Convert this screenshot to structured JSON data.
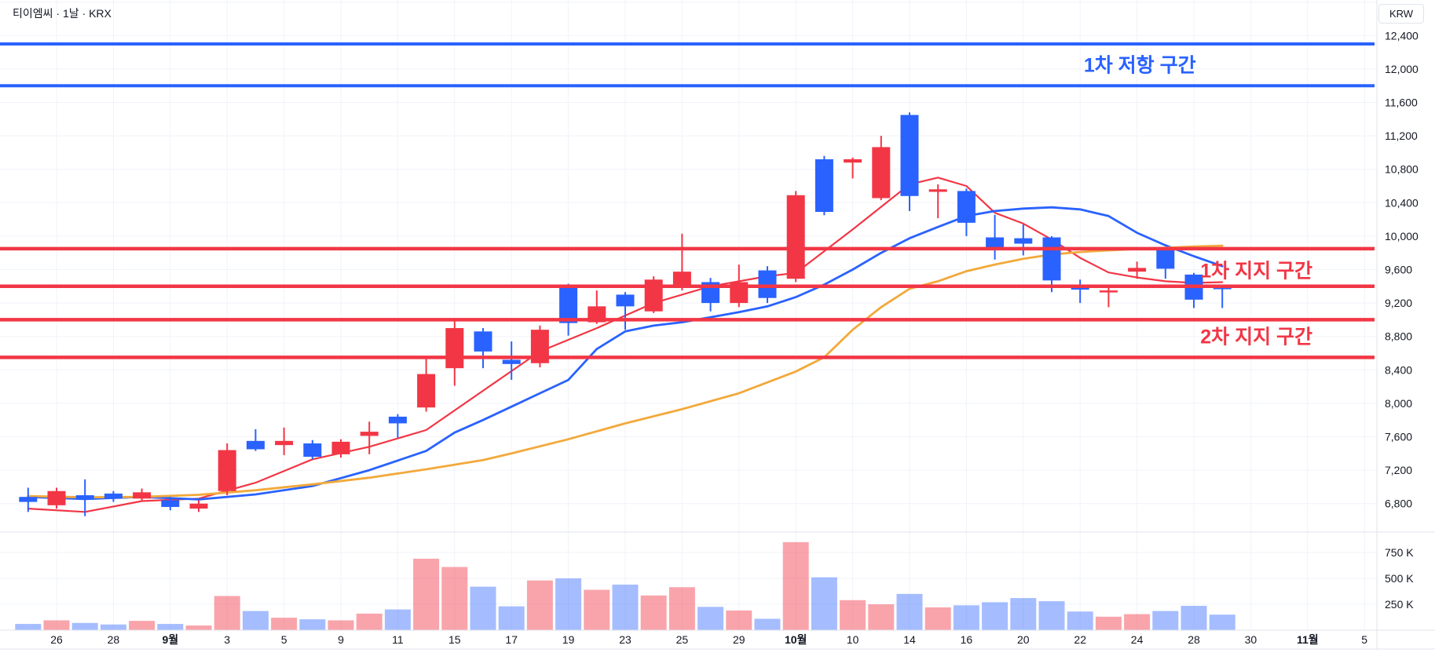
{
  "header": {
    "title": "티이엠씨 · 1날 · KRX"
  },
  "axis": {
    "currency_label": "KRW",
    "price_ticks": [
      {
        "label": "12,400",
        "price": 12400
      },
      {
        "label": "12,000",
        "price": 12000
      },
      {
        "label": "11,600",
        "price": 11600
      },
      {
        "label": "11,200",
        "price": 11200
      },
      {
        "label": "10,800",
        "price": 10800
      },
      {
        "label": "10,400",
        "price": 10400
      },
      {
        "label": "10,000",
        "price": 10000
      },
      {
        "label": "9,600",
        "price": 9600
      },
      {
        "label": "9,200",
        "price": 9200
      },
      {
        "label": "8,800",
        "price": 8800
      },
      {
        "label": "8,400",
        "price": 8400
      },
      {
        "label": "8,000",
        "price": 8000
      },
      {
        "label": "7,600",
        "price": 7600
      },
      {
        "label": "7,200",
        "price": 7200
      },
      {
        "label": "6,800",
        "price": 6800
      }
    ],
    "volume_ticks": [
      {
        "label": "750 K",
        "value_k": 750
      },
      {
        "label": "500 K",
        "value_k": 500
      },
      {
        "label": "250 K",
        "value_k": 250
      }
    ],
    "date_ticks": [
      {
        "label": "26",
        "index": 1,
        "month": false
      },
      {
        "label": "28",
        "index": 3,
        "month": false
      },
      {
        "label": "9월",
        "index": 5,
        "month": true
      },
      {
        "label": "3",
        "index": 7,
        "month": false
      },
      {
        "label": "5",
        "index": 9,
        "month": false
      },
      {
        "label": "9",
        "index": 11,
        "month": false
      },
      {
        "label": "11",
        "index": 13,
        "month": false
      },
      {
        "label": "15",
        "index": 15,
        "month": false
      },
      {
        "label": "17",
        "index": 17,
        "month": false
      },
      {
        "label": "19",
        "index": 19,
        "month": false
      },
      {
        "label": "23",
        "index": 21,
        "month": false
      },
      {
        "label": "25",
        "index": 23,
        "month": false
      },
      {
        "label": "29",
        "index": 25,
        "month": false
      },
      {
        "label": "10월",
        "index": 27,
        "month": true
      },
      {
        "label": "10",
        "index": 29,
        "month": false
      },
      {
        "label": "14",
        "index": 31,
        "month": false
      },
      {
        "label": "16",
        "index": 33,
        "month": false
      },
      {
        "label": "20",
        "index": 35,
        "month": false
      },
      {
        "label": "22",
        "index": 37,
        "month": false
      },
      {
        "label": "24",
        "index": 39,
        "month": false
      },
      {
        "label": "28",
        "index": 41,
        "month": false
      },
      {
        "label": "30",
        "index": 43,
        "month": false
      },
      {
        "label": "11월",
        "index": 45,
        "month": true
      },
      {
        "label": "5",
        "index": 47,
        "month": false
      }
    ]
  },
  "levels": {
    "resistance": {
      "color": "#2962ff",
      "width": 4,
      "prices": [
        12300,
        11800
      ]
    },
    "support": {
      "color": "#f23645",
      "width": 4.5,
      "prices": [
        9850,
        9400,
        9000,
        8550
      ]
    }
  },
  "annotations": [
    {
      "text": "1차 저항 구간",
      "color": "#2962ff",
      "index": 39.1,
      "price": 12050
    },
    {
      "text": "1차 지지 구간",
      "color": "#f23645",
      "index": 43.2,
      "price": 9590
    },
    {
      "text": "2차 지지 구간",
      "color": "#f23645",
      "index": 43.2,
      "price": 8800
    }
  ],
  "chart_data": {
    "type": "candlestick",
    "ylabel": "KRW",
    "price_range": [
      6800,
      12400
    ],
    "up_color": "#f23645",
    "down_color": "#2962ff",
    "volume_up_color": "rgba(242,54,69,0.45)",
    "volume_down_color": "rgba(41,98,255,0.42)",
    "candles_ohlcv_k": [
      [
        6880,
        6990,
        6700,
        6820,
        60
      ],
      [
        6780,
        6990,
        6740,
        6950,
        95
      ],
      [
        6900,
        7090,
        6650,
        6850,
        70
      ],
      [
        6920,
        6950,
        6820,
        6860,
        55
      ],
      [
        6860,
        6980,
        6830,
        6935,
        90
      ],
      [
        6840,
        6880,
        6720,
        6760,
        60
      ],
      [
        6740,
        6840,
        6700,
        6800,
        45
      ],
      [
        6950,
        7520,
        6900,
        7440,
        330
      ],
      [
        7550,
        7690,
        7430,
        7450,
        185
      ],
      [
        7500,
        7710,
        7380,
        7550,
        120
      ],
      [
        7520,
        7560,
        7330,
        7360,
        105
      ],
      [
        7390,
        7570,
        7350,
        7540,
        95
      ],
      [
        7610,
        7780,
        7390,
        7660,
        160
      ],
      [
        7840,
        7870,
        7590,
        7760,
        200
      ],
      [
        7950,
        8560,
        7900,
        8350,
        690
      ],
      [
        8420,
        8980,
        8210,
        8900,
        610
      ],
      [
        8860,
        8900,
        8420,
        8620,
        420
      ],
      [
        8520,
        8740,
        8280,
        8470,
        230
      ],
      [
        8480,
        8930,
        8430,
        8880,
        480
      ],
      [
        9410,
        9430,
        8810,
        8960,
        500
      ],
      [
        8970,
        9350,
        8950,
        9160,
        390
      ],
      [
        9300,
        9330,
        8880,
        9160,
        440
      ],
      [
        9100,
        9520,
        9080,
        9480,
        335
      ],
      [
        9380,
        10030,
        9350,
        9575,
        415
      ],
      [
        9450,
        9500,
        9100,
        9200,
        225
      ],
      [
        9200,
        9660,
        9150,
        9450,
        190
      ],
      [
        9590,
        9640,
        9200,
        9260,
        110
      ],
      [
        9490,
        10540,
        9450,
        10490,
        850
      ],
      [
        10920,
        10960,
        10250,
        10290,
        510
      ],
      [
        10880,
        10940,
        10690,
        10920,
        290
      ],
      [
        10455,
        11200,
        10430,
        11065,
        250
      ],
      [
        11450,
        11480,
        10300,
        10480,
        350
      ],
      [
        10530,
        10620,
        10215,
        10560,
        220
      ],
      [
        10540,
        10570,
        10000,
        10160,
        240
      ],
      [
        9985,
        10255,
        9720,
        9840,
        270
      ],
      [
        9975,
        10140,
        9770,
        9910,
        310
      ],
      [
        9985,
        10000,
        9330,
        9470,
        280
      ],
      [
        9400,
        9480,
        9200,
        9360,
        180
      ],
      [
        9330,
        9400,
        9150,
        9350,
        130
      ],
      [
        9575,
        9695,
        9490,
        9620,
        155
      ],
      [
        9855,
        9860,
        9490,
        9610,
        185
      ],
      [
        9540,
        9560,
        9140,
        9240,
        235
      ],
      [
        9390,
        9420,
        9140,
        9365,
        150
      ]
    ],
    "moving_averages": [
      {
        "name": "ma-fast",
        "color": "#f23645",
        "stroke": 2.2,
        "points": [
          [
            0,
            6740
          ],
          [
            2,
            6700
          ],
          [
            4,
            6830
          ],
          [
            6,
            6860
          ],
          [
            8,
            7050
          ],
          [
            10,
            7330
          ],
          [
            12,
            7480
          ],
          [
            14,
            7680
          ],
          [
            16,
            8150
          ],
          [
            18,
            8620
          ],
          [
            20,
            8900
          ],
          [
            22,
            9200
          ],
          [
            24,
            9400
          ],
          [
            26,
            9520
          ],
          [
            27,
            9560
          ],
          [
            28,
            9820
          ],
          [
            29,
            10080
          ],
          [
            30,
            10350
          ],
          [
            31,
            10620
          ],
          [
            32,
            10700
          ],
          [
            33,
            10600
          ],
          [
            34,
            10280
          ],
          [
            35,
            10150
          ],
          [
            36,
            9960
          ],
          [
            37,
            9740
          ],
          [
            38,
            9565
          ],
          [
            39,
            9505
          ],
          [
            40,
            9460
          ],
          [
            41,
            9440
          ],
          [
            42,
            9450
          ]
        ]
      },
      {
        "name": "ma-mid",
        "color": "#2962ff",
        "stroke": 2.8,
        "points": [
          [
            0,
            6880
          ],
          [
            2,
            6855
          ],
          [
            4,
            6880
          ],
          [
            6,
            6850
          ],
          [
            8,
            6910
          ],
          [
            10,
            7010
          ],
          [
            12,
            7200
          ],
          [
            14,
            7430
          ],
          [
            15,
            7650
          ],
          [
            16,
            7800
          ],
          [
            17,
            7960
          ],
          [
            18,
            8120
          ],
          [
            19,
            8280
          ],
          [
            20,
            8650
          ],
          [
            21,
            8860
          ],
          [
            22,
            8930
          ],
          [
            23,
            8970
          ],
          [
            24,
            9030
          ],
          [
            25,
            9090
          ],
          [
            26,
            9160
          ],
          [
            27,
            9270
          ],
          [
            28,
            9420
          ],
          [
            29,
            9600
          ],
          [
            30,
            9800
          ],
          [
            31,
            9975
          ],
          [
            32,
            10110
          ],
          [
            33,
            10240
          ],
          [
            34,
            10300
          ],
          [
            35,
            10330
          ],
          [
            36,
            10345
          ],
          [
            37,
            10320
          ],
          [
            38,
            10240
          ],
          [
            39,
            10040
          ],
          [
            40,
            9890
          ],
          [
            41,
            9760
          ],
          [
            42,
            9640
          ]
        ]
      },
      {
        "name": "ma-slow",
        "color": "#f2a93b",
        "stroke": 2.8,
        "points": [
          [
            0,
            6890
          ],
          [
            2,
            6875
          ],
          [
            4,
            6880
          ],
          [
            6,
            6905
          ],
          [
            8,
            6960
          ],
          [
            10,
            7030
          ],
          [
            12,
            7110
          ],
          [
            14,
            7210
          ],
          [
            16,
            7320
          ],
          [
            17,
            7400
          ],
          [
            19,
            7570
          ],
          [
            21,
            7760
          ],
          [
            23,
            7930
          ],
          [
            25,
            8120
          ],
          [
            27,
            8380
          ],
          [
            28,
            8550
          ],
          [
            29,
            8880
          ],
          [
            30,
            9150
          ],
          [
            31,
            9370
          ],
          [
            32,
            9460
          ],
          [
            33,
            9580
          ],
          [
            34,
            9660
          ],
          [
            35,
            9730
          ],
          [
            36,
            9780
          ],
          [
            37,
            9810
          ],
          [
            38,
            9830
          ],
          [
            39,
            9845
          ],
          [
            40,
            9860
          ],
          [
            41,
            9875
          ],
          [
            42,
            9885
          ]
        ]
      }
    ]
  },
  "colors": {
    "grid": "#f0f3fa",
    "axis_border": "#e0e3eb",
    "axis_text": "#131722"
  }
}
